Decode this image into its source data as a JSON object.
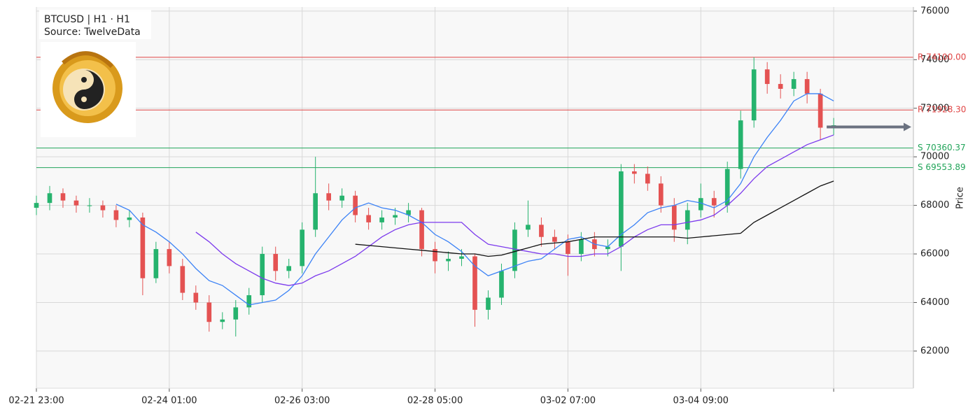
{
  "chart_data": {
    "type": "candlestick",
    "title": "BTCUSD | H1  ·  H1",
    "subtitle": "Source: TwelveData",
    "y_label": "Price",
    "x": [
      0,
      1,
      2,
      3,
      4,
      5,
      6,
      7,
      8,
      9,
      10,
      11,
      12,
      13,
      14,
      15,
      16,
      17,
      18,
      19,
      20,
      21,
      22,
      23,
      24,
      25,
      26,
      27,
      28,
      29,
      30,
      31,
      32,
      33,
      34,
      35,
      36,
      37,
      38,
      39,
      40,
      41,
      42,
      43,
      44,
      45,
      46,
      47,
      48,
      49,
      50,
      51,
      52,
      53,
      54,
      55,
      56,
      57,
      58,
      59,
      60
    ],
    "open": [
      67900,
      68100,
      68500,
      68200,
      68000,
      68000,
      67800,
      67400,
      67500,
      65000,
      66200,
      65500,
      64400,
      64000,
      63200,
      63300,
      63800,
      64300,
      66000,
      65300,
      65500,
      67000,
      68500,
      68200,
      68400,
      67600,
      67300,
      67500,
      67600,
      67800,
      66200,
      65700,
      65800,
      65900,
      63700,
      64200,
      65300,
      67000,
      67200,
      66700,
      66500,
      66000,
      66600,
      66200,
      66300,
      69400,
      69300,
      68900,
      68000,
      67000,
      67800,
      68300,
      68000,
      69500,
      71500,
      73600,
      73000,
      72800,
      73200,
      72600,
      71200
    ],
    "high": [
      68400,
      68800,
      68700,
      68400,
      68300,
      68200,
      68000,
      67800,
      67700,
      66500,
      66500,
      65800,
      64700,
      64300,
      63600,
      64100,
      64600,
      66300,
      66300,
      65800,
      67300,
      70000,
      68900,
      68700,
      68600,
      67900,
      67800,
      67900,
      68100,
      67900,
      66500,
      66100,
      66200,
      66000,
      64500,
      65600,
      67300,
      68200,
      67500,
      67000,
      66800,
      66900,
      66900,
      66600,
      69700,
      69700,
      69600,
      69200,
      68300,
      68100,
      68900,
      68600,
      69800,
      71900,
      74100,
      73900,
      73400,
      73500,
      73500,
      72800,
      71600
    ],
    "low": [
      67600,
      67800,
      67900,
      67700,
      67700,
      67500,
      67100,
      67100,
      64300,
      64800,
      65200,
      64100,
      63700,
      62800,
      62900,
      62600,
      63500,
      64000,
      64900,
      65000,
      65200,
      66700,
      67800,
      67900,
      67300,
      67000,
      67000,
      67200,
      67300,
      65900,
      65200,
      65300,
      65500,
      63000,
      63300,
      63900,
      65000,
      66700,
      66300,
      66200,
      65100,
      65700,
      65900,
      65900,
      65300,
      68900,
      68600,
      67700,
      66500,
      66400,
      67500,
      67500,
      67700,
      69100,
      71200,
      72600,
      72400,
      72500,
      72200,
      70700,
      70900
    ],
    "close": [
      68100,
      68500,
      68200,
      68000,
      68000,
      67800,
      67400,
      67500,
      65000,
      66200,
      65500,
      64400,
      64000,
      63200,
      63300,
      63800,
      64300,
      66000,
      65300,
      65500,
      67000,
      68500,
      68200,
      68400,
      67600,
      67300,
      67500,
      67600,
      67800,
      66200,
      65700,
      65800,
      65900,
      63700,
      64200,
      65300,
      67000,
      67200,
      66700,
      66500,
      66000,
      66600,
      66200,
      66300,
      69400,
      69300,
      68900,
      68000,
      67000,
      67800,
      68300,
      68000,
      69500,
      71500,
      73600,
      73000,
      72800,
      73200,
      72600,
      71200,
      71300
    ],
    "up_color": "#26b36e",
    "down_color": "#e45252",
    "series": [
      {
        "color": "#3b82f6",
        "values": [
          null,
          null,
          null,
          null,
          null,
          null,
          68050,
          67800,
          67200,
          66900,
          66500,
          66000,
          65400,
          64900,
          64700,
          64300,
          63900,
          64000,
          64100,
          64500,
          65100,
          66000,
          66700,
          67400,
          67900,
          68100,
          67900,
          67800,
          67600,
          67300,
          66800,
          66500,
          66100,
          65500,
          65100,
          65300,
          65500,
          65700,
          65800,
          66200,
          66600,
          66700,
          66400,
          66300,
          66800,
          67200,
          67700,
          67900,
          68000,
          68200,
          68100,
          67900,
          68200,
          68900,
          70000,
          70800,
          71500,
          72300,
          72600,
          72600,
          72300
        ]
      },
      {
        "color": "#7c3aed",
        "values": [
          null,
          null,
          null,
          null,
          null,
          null,
          null,
          null,
          null,
          null,
          null,
          null,
          66900,
          66500,
          66000,
          65600,
          65300,
          65000,
          64800,
          64700,
          64800,
          65100,
          65300,
          65600,
          65900,
          66300,
          66700,
          67000,
          67200,
          67300,
          67300,
          67300,
          67300,
          66800,
          66400,
          66300,
          66200,
          66100,
          66000,
          66000,
          65900,
          65900,
          66000,
          66000,
          66300,
          66700,
          67000,
          67200,
          67200,
          67300,
          67400,
          67600,
          68000,
          68500,
          69100,
          69600,
          69900,
          70200,
          70500,
          70700,
          70900
        ]
      },
      {
        "color": "#111111",
        "values": [
          null,
          null,
          null,
          null,
          null,
          null,
          null,
          null,
          null,
          null,
          null,
          null,
          null,
          null,
          null,
          null,
          null,
          null,
          null,
          null,
          null,
          null,
          null,
          null,
          66400,
          66350,
          66300,
          66250,
          66200,
          66150,
          66100,
          66050,
          66000,
          66000,
          65900,
          65950,
          66100,
          66250,
          66400,
          66450,
          66500,
          66600,
          66700,
          66700,
          66700,
          66700,
          66700,
          66700,
          66700,
          66650,
          66700,
          66750,
          66800,
          66850,
          67300,
          67600,
          67900,
          68200,
          68500,
          68800,
          69000
        ]
      }
    ],
    "levels": [
      {
        "value": 74100,
        "label": "R 74100.00",
        "color": "#e04545"
      },
      {
        "value": 71928.3,
        "label": "R 71928.30",
        "color": "#e04545"
      },
      {
        "value": 70360.37,
        "label": "S 70360.37",
        "color": "#22a55a"
      },
      {
        "value": 69553.89,
        "label": "S 69553.89",
        "color": "#22a55a"
      }
    ],
    "projection": {
      "value": 71230,
      "color": "#6b7280"
    },
    "xlim": [
      0,
      66
    ],
    "ylim": [
      60470,
      76170
    ],
    "yticks": [
      62000,
      64000,
      66000,
      68000,
      70000,
      72000,
      74000,
      76000
    ],
    "xticks": [
      {
        "value": 0,
        "label": "02-21 23:00"
      },
      {
        "value": 10,
        "label": "02-24 01:00"
      },
      {
        "value": 20,
        "label": "02-26 03:00"
      },
      {
        "value": 30,
        "label": "02-28 05:00"
      },
      {
        "value": 40,
        "label": "03-02 07:00"
      },
      {
        "value": 50,
        "label": "03-04 09:00"
      },
      {
        "value": 60,
        "label": null
      }
    ],
    "grid": true
  }
}
